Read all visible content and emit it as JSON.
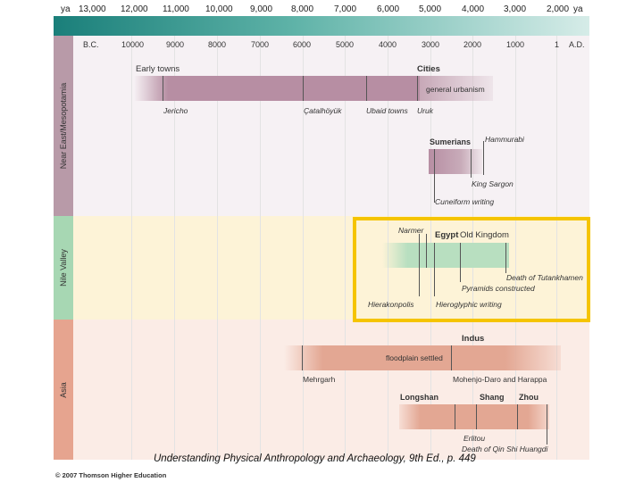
{
  "ya_scale": {
    "left_unit": "ya",
    "right_unit": "ya",
    "values": [
      "13,000",
      "12,000",
      "11,000",
      "10,000",
      "9,000",
      "8,000",
      "7,000",
      "6,000",
      "5,000",
      "4,000",
      "3,000",
      "2,000"
    ]
  },
  "date_axis": {
    "bc_label": "B.C.",
    "ad_label": "A.D.",
    "values": [
      "10000",
      "9000",
      "8000",
      "7000",
      "6000",
      "5000",
      "4000",
      "3000",
      "2000",
      "1000",
      "1"
    ]
  },
  "regions": {
    "near_east": "Near East/Mesopotamia",
    "nile": "Nile Valley",
    "asia": "Asia"
  },
  "colors": {
    "near_east": "#b89aa8",
    "near_east_bg": "#f3eef2",
    "nile": "#a7d7b3",
    "nile_bg": "#fdf3d7",
    "asia": "#e6a48f",
    "asia_bg": "#fbebe5",
    "highlight": "#f5c400"
  },
  "near_east": {
    "early_towns": "Early towns",
    "cities": "Cities",
    "general_urbanism": "general urbanism",
    "jericho": "Jericho",
    "catalhoyuk": "Çatalhöyük",
    "ubaid_towns": "Ubaid towns",
    "uruk": "Uruk",
    "sumerians": "Sumerians",
    "hammurabi": "Hammurabi",
    "king_sargon": "King Sargon",
    "cuneiform": "Cuneiform writing"
  },
  "nile": {
    "narmer": "Narmer",
    "egypt": "Egypt",
    "old_kingdom": "Old Kingdom",
    "tutankhamen": "Death of Tutankhamen",
    "pyramids": "Pyramids constructed",
    "hierakonpolis": "Hierakonpolis",
    "hieroglyphic": "Hieroglyphic writing"
  },
  "asia": {
    "indus": "Indus",
    "floodplain": "floodplain settled",
    "mehrgarh": "Mehrgarh",
    "mohenjo": "Mohenjo-Daro and Harappa",
    "longshan": "Longshan",
    "shang": "Shang",
    "zhou": "Zhou",
    "erlitou": "Erlitou",
    "qin": "Death of Qin Shi Huangdi"
  },
  "caption": "Understanding Physical Anthropology and Archaeology, 9th Ed., p. 449",
  "copyright": "© 2007 Thomson Higher Education"
}
